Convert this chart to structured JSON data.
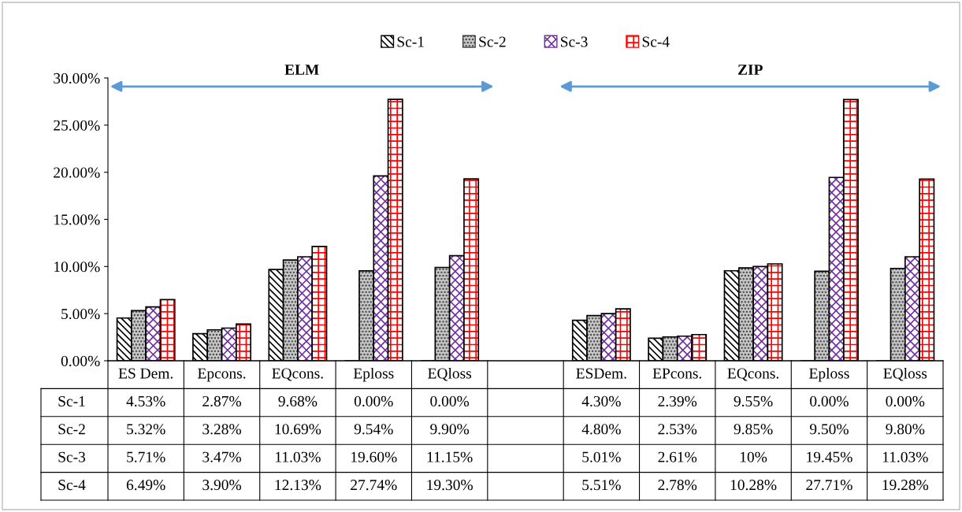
{
  "chart_data": {
    "type": "bar",
    "categories": [
      "ES Dem.",
      "Epcons.",
      "EQcons.",
      "Eploss",
      "EQloss",
      null,
      "ESDem.",
      "EPcons.",
      "EQcons.",
      "Eploss",
      "EQloss"
    ],
    "series": [
      {
        "name": "Sc-1",
        "color": "#000000",
        "values": [
          4.53,
          2.87,
          9.68,
          0.0,
          0.0,
          null,
          4.3,
          2.39,
          9.55,
          0.0,
          0.0
        ],
        "value_labels": [
          "4.53%",
          "2.87%",
          "9.68%",
          "0.00%",
          "0.00%",
          null,
          "4.30%",
          "2.39%",
          "9.55%",
          "0.00%",
          "0.00%"
        ]
      },
      {
        "name": "Sc-2",
        "color": "#404040",
        "values": [
          5.32,
          3.28,
          10.69,
          9.54,
          9.9,
          null,
          4.8,
          2.53,
          9.85,
          9.5,
          9.8
        ],
        "value_labels": [
          "5.32%",
          "3.28%",
          "10.69%",
          "9.54%",
          "9.90%",
          null,
          "4.80%",
          "2.53%",
          "9.85%",
          "9.50%",
          "9.80%"
        ]
      },
      {
        "name": "Sc-3",
        "color": "#7030a0",
        "values": [
          5.71,
          3.47,
          11.03,
          19.6,
          11.15,
          null,
          5.01,
          2.61,
          10,
          19.45,
          11.03
        ],
        "value_labels": [
          "5.71%",
          "3.47%",
          "11.03%",
          "19.60%",
          "11.15%",
          null,
          "5.01%",
          "2.61%",
          "10%",
          "19.45%",
          "11.03%"
        ]
      },
      {
        "name": "Sc-4",
        "color": "#ff0000",
        "values": [
          6.49,
          3.9,
          12.13,
          27.74,
          19.3,
          null,
          5.51,
          2.78,
          10.28,
          27.71,
          19.28
        ],
        "value_labels": [
          "6.49%",
          "3.90%",
          "12.13%",
          "27.74%",
          "19.30%",
          null,
          "5.51%",
          "2.78%",
          "10.28%",
          "27.71%",
          "19.28%"
        ]
      }
    ],
    "ylim": [
      0,
      30
    ],
    "yticks": [
      {
        "value": 0,
        "label": "0.00%"
      },
      {
        "value": 5,
        "label": "5.00%"
      },
      {
        "value": 10,
        "label": "10.00%"
      },
      {
        "value": 15,
        "label": "15.00%"
      },
      {
        "value": 20,
        "label": "20.00%"
      },
      {
        "value": 25,
        "label": "25.00%"
      },
      {
        "value": 30,
        "label": "30.00%"
      }
    ],
    "annotations": [
      "ELM",
      "ZIP"
    ],
    "legend": "top",
    "grid": false
  }
}
